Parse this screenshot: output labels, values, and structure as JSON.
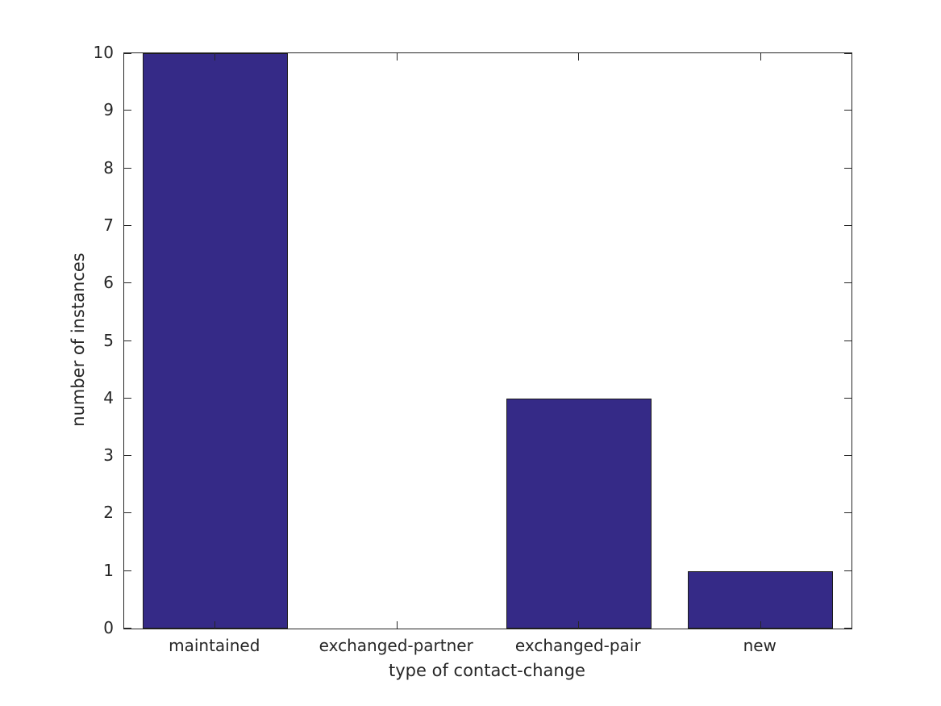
{
  "figure": {
    "background": "#ffffff"
  },
  "chart_data": {
    "type": "bar",
    "title": "",
    "xlabel": "type of contact-change",
    "ylabel": "number of instances",
    "categories": [
      "maintained",
      "exchanged-partner",
      "exchanged-pair",
      "new"
    ],
    "values": [
      10,
      0,
      4,
      1
    ],
    "ylim": [
      0,
      10
    ],
    "yticks": [
      0,
      1,
      2,
      3,
      4,
      5,
      6,
      7,
      8,
      9,
      10
    ],
    "grid": false,
    "legend_position": "none",
    "bar_width_fraction": 0.8,
    "colors": {
      "bar_fill": "#352a87",
      "bar_edge": "#1a1a1a",
      "axis": "#262626",
      "text": "#262626",
      "background": "#ffffff"
    }
  }
}
